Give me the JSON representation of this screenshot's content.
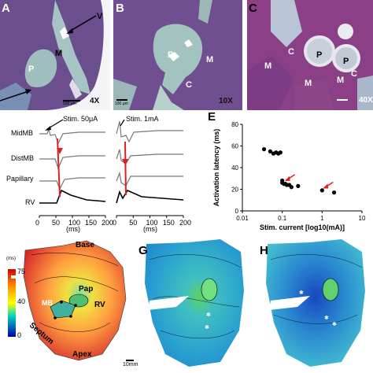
{
  "panels": {
    "A": {
      "letter": "A",
      "labels": {
        "v": "V",
        "m": "M",
        "p": "P"
      },
      "magnification": "4X",
      "scale": "500 μm"
    },
    "B": {
      "letter": "B",
      "labels": {
        "p": "P",
        "m": "M",
        "c": "C"
      },
      "magnification": "10X",
      "scale": "100 μm"
    },
    "C": {
      "letter": "C",
      "labels": {
        "m1": "M",
        "c1": "C",
        "p1": "P",
        "p2": "P",
        "c2": "C",
        "m2": "M",
        "m3": "M"
      },
      "magnification": "40X"
    },
    "D": {
      "traces": [
        "MidMB",
        "DistMB",
        "Papillary",
        "RV"
      ],
      "stim1": "Stim. 50μA",
      "stim2": "Stim. 1mA",
      "xlabel": "(ms)",
      "ticks1": [
        "0",
        "50",
        "100",
        "150",
        "200"
      ],
      "ticks2": [
        "0",
        "50",
        "100",
        "150",
        "200"
      ]
    },
    "E": {
      "letter": "E"
    },
    "F": {
      "unit": "(ms)",
      "scale_ticks": [
        "75",
        "40",
        "0"
      ],
      "labels": {
        "base": "Base",
        "pap": "Pap",
        "rv": "RV",
        "mb": "MB",
        "septum": "Septum",
        "apex": "Apex"
      },
      "scale_bar": "10mm"
    },
    "G": {
      "letter": "G"
    },
    "H": {
      "letter": "H"
    }
  },
  "chart_data": {
    "type": "scatter",
    "title": "",
    "xlabel": "Stim. current [log10(mA)]",
    "ylabel": "Activation latency (ms)",
    "xscale": "log",
    "xlim": [
      0.01,
      10
    ],
    "ylim": [
      0,
      80
    ],
    "xticks": [
      "0.01",
      "0.1",
      "1",
      "10"
    ],
    "yticks": [
      "0",
      "20",
      "40",
      "60",
      "80"
    ],
    "series": [
      {
        "color": "#000000",
        "x": [
          0.035,
          0.05,
          0.06,
          0.07,
          0.08,
          0.09,
          0.1,
          0.1,
          0.11,
          0.12,
          0.13,
          0.15,
          0.17,
          0.25,
          1.0,
          2.0
        ],
        "y": [
          57,
          55,
          53,
          54,
          53,
          54,
          28,
          26,
          25,
          25,
          24,
          24,
          22,
          23,
          19,
          17
        ]
      }
    ],
    "annotations": [
      {
        "type": "red-arrow",
        "x": 0.11,
        "y": 27
      },
      {
        "type": "red-arrow",
        "x": 1.0,
        "y": 20
      }
    ]
  }
}
